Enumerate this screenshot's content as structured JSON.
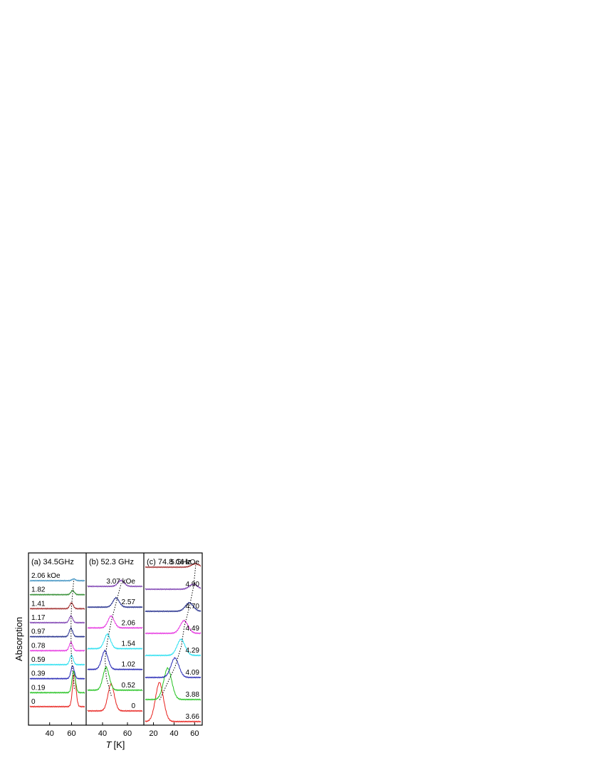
{
  "figure": {
    "ylabel": "Absorption",
    "xlabel_italic": "T",
    "xlabel_unit": "[K]"
  },
  "chart_data": [
    {
      "type": "line",
      "panel_title": "(a) 34.5GHz",
      "xlim": [
        22,
        72
      ],
      "xticks": [
        40,
        60
      ],
      "peak_width": 1.6,
      "series": [
        {
          "label": "0",
          "color": "#e8201c",
          "peak_T": 62.5,
          "amp": 1.9
        },
        {
          "label": "0.19",
          "color": "#22c21f",
          "peak_T": 62.0,
          "amp": 1.25
        },
        {
          "label": "0.39",
          "color": "#2527b4",
          "peak_T": 61.0,
          "amp": 0.75
        },
        {
          "label": "0.59",
          "color": "#26dff0",
          "peak_T": 60.0,
          "amp": 0.55
        },
        {
          "label": "0.78",
          "color": "#e633e0",
          "peak_T": 59.5,
          "amp": 0.5
        },
        {
          "label": "0.97",
          "color": "#1f2a8a",
          "peak_T": 59.5,
          "amp": 0.5
        },
        {
          "label": "1.17",
          "color": "#7a3bb0",
          "peak_T": 59.5,
          "amp": 0.4
        },
        {
          "label": "1.41",
          "color": "#a02a2a",
          "peak_T": 60.0,
          "amp": 0.35
        },
        {
          "label": "1.82",
          "color": "#2e8b2e",
          "peak_T": 61.0,
          "amp": 0.25
        },
        {
          "label": "2.06 kOe",
          "color": "#3a8fc0",
          "peak_T": 62.0,
          "amp": 0.1
        }
      ]
    },
    {
      "type": "line",
      "panel_title": "(b) 52.3 GHz",
      "xlim": [
        28,
        72
      ],
      "xticks": [
        40,
        60
      ],
      "peak_width": 2.6,
      "series": [
        {
          "label": "0",
          "color": "#e8201c",
          "peak_T": 47.0,
          "amp": 1.6
        },
        {
          "label": "0.52",
          "color": "#22c21f",
          "peak_T": 43.0,
          "amp": 1.35
        },
        {
          "label": "1.02",
          "color": "#2527b4",
          "peak_T": 42.0,
          "amp": 1.1
        },
        {
          "label": "1.54",
          "color": "#26dff0",
          "peak_T": 44.0,
          "amp": 0.85
        },
        {
          "label": "2.06",
          "color": "#e633e0",
          "peak_T": 47.0,
          "amp": 0.7
        },
        {
          "label": "2.57",
          "color": "#1f2a8a",
          "peak_T": 51.0,
          "amp": 0.55
        },
        {
          "label": "3.07 kOe",
          "color": "#7a3bb0",
          "peak_T": 55.0,
          "amp": 0.35
        }
      ]
    },
    {
      "type": "line",
      "panel_title": "(c) 74.8 GHz",
      "xlim": [
        12,
        66
      ],
      "xticks": [
        20,
        40,
        60
      ],
      "peak_width": 4.0,
      "series": [
        {
          "label": "3.66",
          "color": "#e8201c",
          "peak_T": 26.0,
          "amp": 2.3
        },
        {
          "label": "3.88",
          "color": "#22c21f",
          "peak_T": 34.0,
          "amp": 1.85
        },
        {
          "label": "4.09",
          "color": "#2527b4",
          "peak_T": 41.0,
          "amp": 1.15
        },
        {
          "label": "4.29",
          "color": "#26dff0",
          "peak_T": 47.0,
          "amp": 0.95
        },
        {
          "label": "4.49",
          "color": "#e633e0",
          "peak_T": 50.0,
          "amp": 0.75
        },
        {
          "label": "4.70",
          "color": "#1f2a8a",
          "peak_T": 55.0,
          "amp": 0.5
        },
        {
          "label": "4.90",
          "color": "#7a3bb0",
          "peak_T": 59.0,
          "amp": 0.3
        },
        {
          "label": "5.16 kOe",
          "color": "#a02a2a",
          "peak_T": 61.0,
          "amp": 0.2
        }
      ]
    }
  ]
}
